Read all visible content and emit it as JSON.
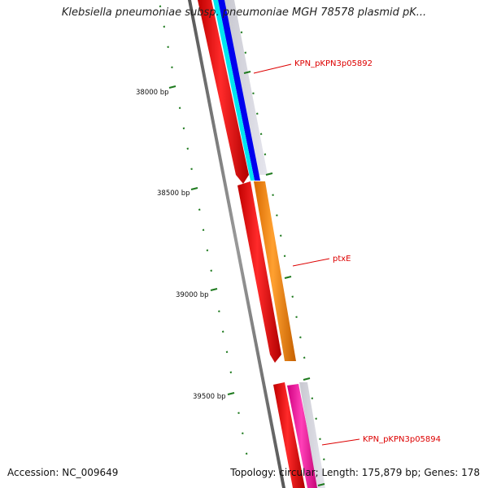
{
  "title": "Klebsiella pneumoniae subsp. pneumoniae MGH 78578 plasmid pK...",
  "accession": "Accession: NC_009649",
  "stats": "Topology: circular; Length: 175,879 bp; Genes: 178",
  "position_labels": [
    "38000 bp",
    "38500 bp",
    "39000 bp",
    "39500 bp"
  ],
  "gene_labels": {
    "g5892": "KPN_pKPN3p05892",
    "ptxE": "ptxE",
    "g5894": "KPN_pKPN3p05894"
  },
  "colors": {
    "backbone": "#8a8a8a",
    "tick": "#1e7a1e",
    "gene_red": "#ff0000",
    "gene_orange": "#ff9410",
    "gene_pink": "#ff2ca8",
    "track_blue": "#0000ee",
    "track_cyan": "#00e6f0",
    "label": "#dd0000"
  }
}
